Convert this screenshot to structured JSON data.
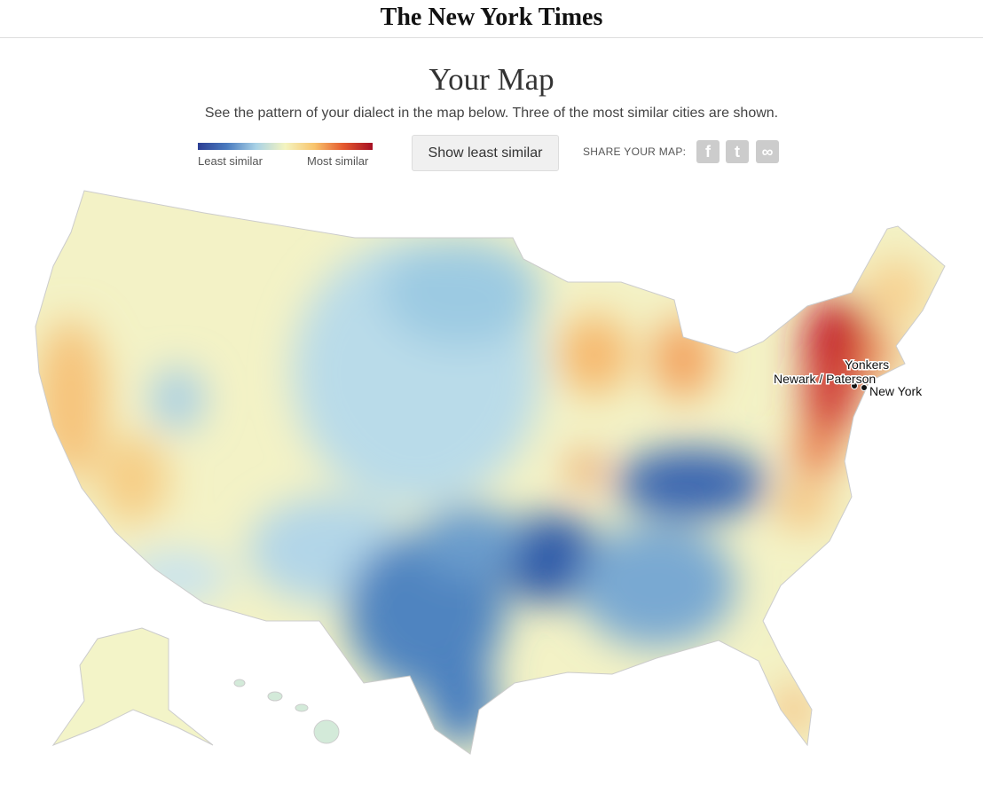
{
  "header": {
    "title": "The New York Times"
  },
  "page": {
    "title": "Your Map",
    "subtitle": "See the pattern of your dialect in the map below. Three of the most similar cities are shown."
  },
  "legend": {
    "low": "Least similar",
    "high": "Most similar"
  },
  "button": {
    "label": "Show least similar"
  },
  "share": {
    "label": "SHARE YOUR MAP:"
  },
  "cities": [
    {
      "label": "Yonkers"
    },
    {
      "label": "Newark / Paterson"
    },
    {
      "label": "New York"
    }
  ]
}
